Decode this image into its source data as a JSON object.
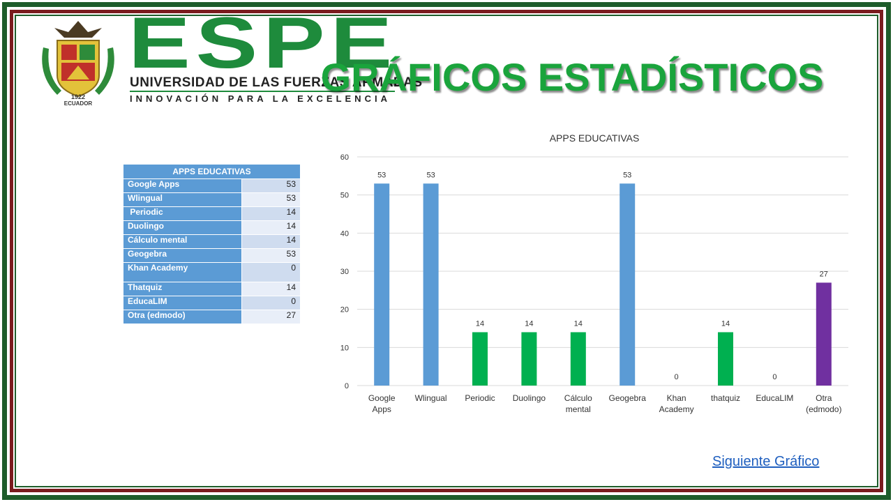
{
  "header": {
    "logo_word": "ESPE",
    "logo_subtitle": "UNIVERSIDAD DE LAS FUERZAS ARMADAS",
    "logo_motto": "INNOVACIÓN PARA LA EXCELENCIA",
    "crest_caption_top": "1922",
    "crest_caption": "ECUADOR",
    "title": "GRÁFICOS ESTADÍSTICOS"
  },
  "table": {
    "title": "APPS EDUCATIVAS",
    "rows": [
      {
        "label": "Google Apps",
        "value": "53"
      },
      {
        "label": "Wlingual",
        "value": "53"
      },
      {
        "label": " Periodic",
        "value": "14"
      },
      {
        "label": "Duolingo",
        "value": "14"
      },
      {
        "label": "Cálculo mental",
        "value": "14"
      },
      {
        "label": "Geogebra",
        "value": "53"
      },
      {
        "label": "Khan Academy",
        "value": "0"
      },
      {
        "label": "Thatquiz",
        "value": "14"
      },
      {
        "label": "EducaLIM",
        "value": "0"
      },
      {
        "label": "Otra (edmodo)",
        "value": "27"
      }
    ]
  },
  "chart_data": {
    "type": "bar",
    "title": "APPS EDUCATIVAS",
    "categories": [
      [
        "Google",
        "Apps"
      ],
      [
        "Wlingual"
      ],
      [
        "Periodic"
      ],
      [
        "Duolingo"
      ],
      [
        "Cálculo",
        "mental"
      ],
      [
        "Geogebra"
      ],
      [
        "Khan",
        "Academy"
      ],
      [
        "thatquiz"
      ],
      [
        "EducaLIM"
      ],
      [
        "Otra",
        "(edmodo)"
      ]
    ],
    "values": [
      53,
      53,
      14,
      14,
      14,
      53,
      0,
      14,
      0,
      27
    ],
    "bar_colors": [
      "#5b9bd5",
      "#5b9bd5",
      "#00b050",
      "#00b050",
      "#00b050",
      "#5b9bd5",
      "#00b050",
      "#00b050",
      "#00b050",
      "#7030a0"
    ],
    "yticks": [
      0,
      10,
      20,
      30,
      40,
      50,
      60
    ],
    "ylim": [
      0,
      60
    ],
    "grid": true,
    "legend": "none",
    "xlabel": "",
    "ylabel": ""
  },
  "navigation": {
    "next_label": "Siguiente Gráfico"
  },
  "colors": {
    "frame_green": "#1e5c2a",
    "frame_red": "#7a1b1e",
    "title_green": "#1aa43c",
    "table_header": "#5b9bd5",
    "link": "#1f5fbf"
  }
}
